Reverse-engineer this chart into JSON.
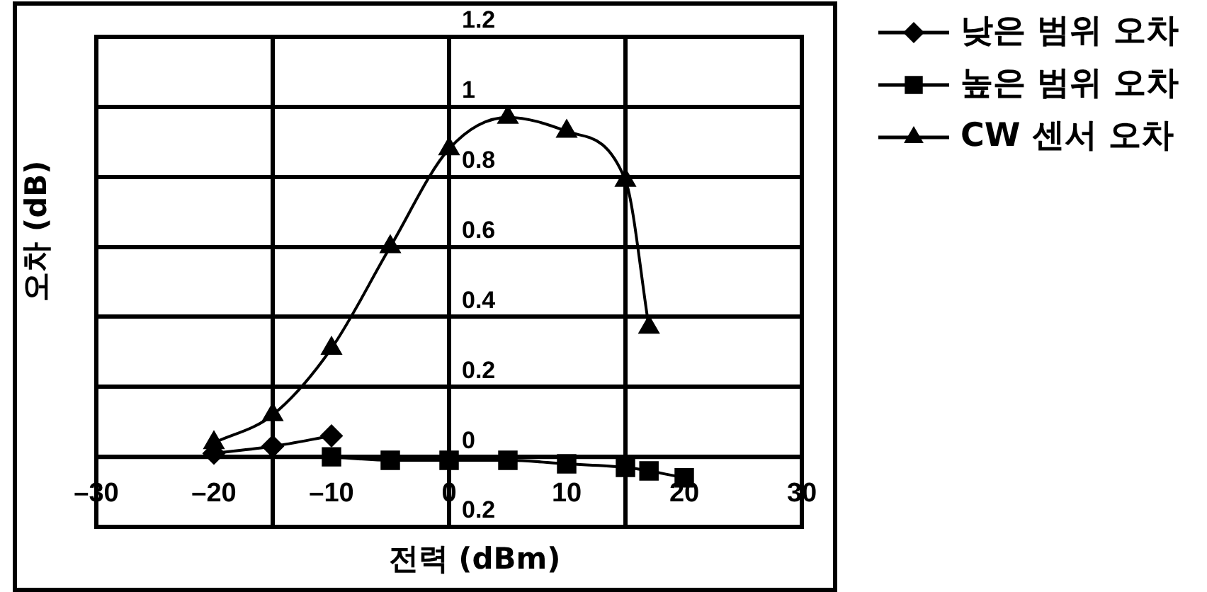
{
  "chart_data": {
    "type": "line",
    "xlabel": "전력 (dBm)",
    "ylabel": "오차 (dB)",
    "series": [
      {
        "name": "낮은 범위 오차",
        "color": "#000000",
        "marker": "diamond",
        "x": [
          -20,
          -15,
          -10
        ],
        "values": [
          0.01,
          0.03,
          0.06
        ]
      },
      {
        "name": "높은 범위 오차",
        "color": "#000000",
        "marker": "square",
        "x": [
          -10,
          -5,
          0,
          5,
          10,
          15,
          17,
          20
        ],
        "values": [
          0,
          -0.01,
          -0.01,
          -0.01,
          -0.02,
          -0.03,
          -0.04,
          -0.06
        ]
      },
      {
        "name": "CW 센서 오차",
        "color": "#000000",
        "marker": "triangle",
        "x": [
          -20,
          -15,
          -10,
          -5,
          0,
          5,
          10,
          15,
          17
        ],
        "values": [
          0.04,
          0.12,
          0.31,
          0.6,
          0.88,
          0.97,
          0.93,
          0.79,
          0.37
        ]
      }
    ],
    "xlim": [
      -30,
      30
    ],
    "xticks": [
      {
        "value": -30,
        "label": "–30"
      },
      {
        "value": -20,
        "label": "–20"
      },
      {
        "value": -10,
        "label": "–10"
      },
      0,
      10,
      20,
      30
    ],
    "ylim": [
      -0.2,
      1.2
    ],
    "yticks": [
      {
        "value": -0.2,
        "label": "0.2"
      },
      0,
      0.2,
      0.4,
      0.6,
      0.8,
      1,
      1.2
    ],
    "ref_lines": [
      {
        "axis": "x",
        "value": -15,
        "color": "#000000"
      },
      {
        "axis": "x",
        "value": 0,
        "color": "#000000"
      },
      {
        "axis": "x",
        "value": 15,
        "color": "#000000"
      }
    ],
    "grid": "y",
    "legend": "top right",
    "line_style": "solid"
  }
}
